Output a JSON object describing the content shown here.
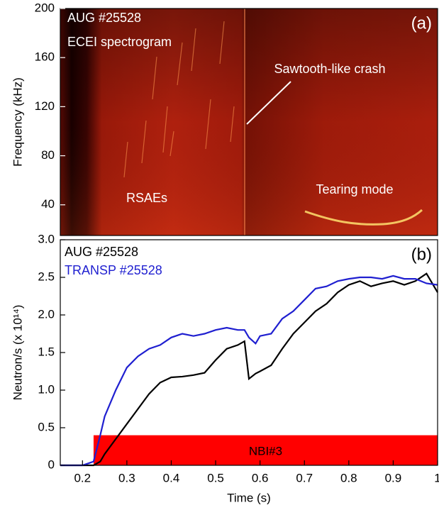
{
  "chart_data": [
    {
      "type": "spectrogram",
      "ylabel": "Frequency (kHz)",
      "panel_label": "(a)",
      "annotations": [
        "AUG #25528",
        "ECEI spectrogram",
        "Sawtooth-like crash",
        "RSAEs",
        "Tearing mode"
      ],
      "xlim": [
        0.15,
        1.0
      ],
      "ylim": [
        15,
        200
      ],
      "yticks": [
        40,
        80,
        120,
        160,
        200
      ]
    },
    {
      "type": "line",
      "xlabel": "Time (s)",
      "ylabel": "Neutron/s (x 10¹⁴)",
      "panel_label": "(b)",
      "x": [
        0.15,
        0.2,
        0.225,
        0.24,
        0.25,
        0.275,
        0.3,
        0.325,
        0.35,
        0.375,
        0.4,
        0.425,
        0.45,
        0.475,
        0.5,
        0.525,
        0.55,
        0.565,
        0.575,
        0.59,
        0.6,
        0.625,
        0.65,
        0.675,
        0.7,
        0.725,
        0.75,
        0.775,
        0.8,
        0.825,
        0.85,
        0.875,
        0.9,
        0.925,
        0.95,
        0.975,
        1.0
      ],
      "series": [
        {
          "name": "AUG #25528",
          "color": "#000000",
          "values": [
            0,
            0,
            0,
            0.05,
            0.15,
            0.35,
            0.55,
            0.75,
            0.95,
            1.1,
            1.17,
            1.18,
            1.2,
            1.23,
            1.4,
            1.55,
            1.6,
            1.65,
            1.15,
            1.22,
            1.25,
            1.33,
            1.55,
            1.75,
            1.9,
            2.05,
            2.15,
            2.3,
            2.4,
            2.45,
            2.38,
            2.42,
            2.45,
            2.4,
            2.45,
            2.55,
            2.3
          ]
        },
        {
          "name": "TRANSP #25528",
          "color": "#1f1fd0",
          "values": [
            0,
            0,
            0.05,
            0.4,
            0.65,
            1.0,
            1.3,
            1.45,
            1.55,
            1.6,
            1.7,
            1.75,
            1.72,
            1.75,
            1.8,
            1.83,
            1.8,
            1.8,
            1.7,
            1.62,
            1.72,
            1.75,
            1.95,
            2.05,
            2.2,
            2.35,
            2.38,
            2.45,
            2.48,
            2.5,
            2.5,
            2.48,
            2.52,
            2.48,
            2.48,
            2.42,
            2.4
          ]
        }
      ],
      "spans": [
        {
          "label": "NBI#3",
          "x": [
            0.225,
            1.0
          ],
          "y": [
            0,
            0.4
          ],
          "color": "#ff0000"
        }
      ],
      "xlim": [
        0.15,
        1.0
      ],
      "ylim": [
        0,
        3
      ],
      "xticks": [
        0.2,
        0.3,
        0.4,
        0.5,
        0.6,
        0.7,
        0.8,
        0.9,
        1
      ],
      "yticks": [
        0,
        0.5,
        {
          "value": 1,
          "label": "1.0"
        },
        1.5,
        {
          "value": 2,
          "label": "2.0"
        },
        2.5,
        {
          "value": 3,
          "label": "3.0"
        }
      ]
    }
  ]
}
